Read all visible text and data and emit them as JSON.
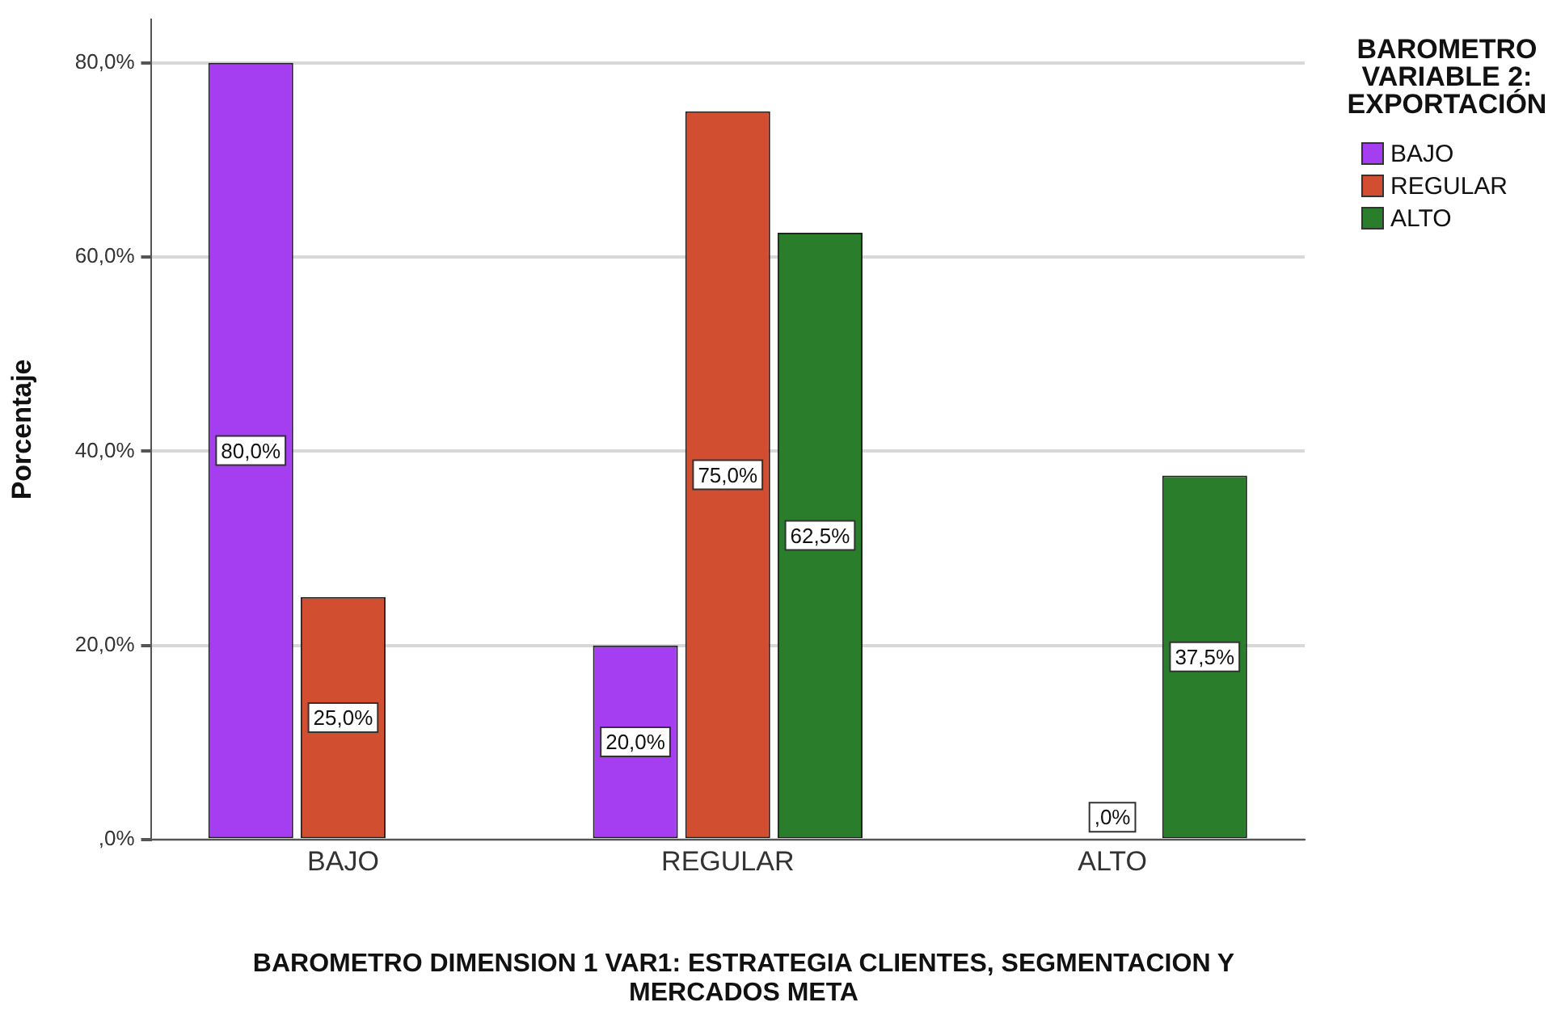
{
  "chart_data": {
    "type": "bar",
    "xlabel": "BAROMETRO DIMENSION 1 VAR1: ESTRATEGIA CLIENTES, SEGMENTACION Y MERCADOS META",
    "ylabel": "Porcentaje",
    "legend_title": "BAROMETRO VARIABLE 2: EXPORTACIÓN",
    "categories": [
      "BAJO",
      "REGULAR",
      "ALTO"
    ],
    "series": [
      {
        "name": "BAJO",
        "color": "#a53ef0",
        "values": [
          80,
          20,
          0
        ],
        "value_labels": [
          "80,0%",
          "20,0%",
          null
        ]
      },
      {
        "name": "REGULAR",
        "color": "#d14f30",
        "values": [
          25,
          75,
          0
        ],
        "value_labels": [
          "25,0%",
          "75,0%",
          ",0%"
        ]
      },
      {
        "name": "ALTO",
        "color": "#2a7d2a",
        "values": [
          0,
          62.5,
          37.5
        ],
        "value_labels": [
          null,
          "62,5%",
          "37,5%"
        ]
      }
    ],
    "ylim": [
      0,
      84.5
    ],
    "yticks": [
      {
        "value": 0,
        "label": ",0%"
      },
      {
        "value": 20,
        "label": "20,0%"
      },
      {
        "value": 40,
        "label": "40,0%"
      },
      {
        "value": 60,
        "label": "60,0%"
      },
      {
        "value": 80,
        "label": "80,0%"
      }
    ],
    "grid": "y",
    "legend": "top right"
  }
}
